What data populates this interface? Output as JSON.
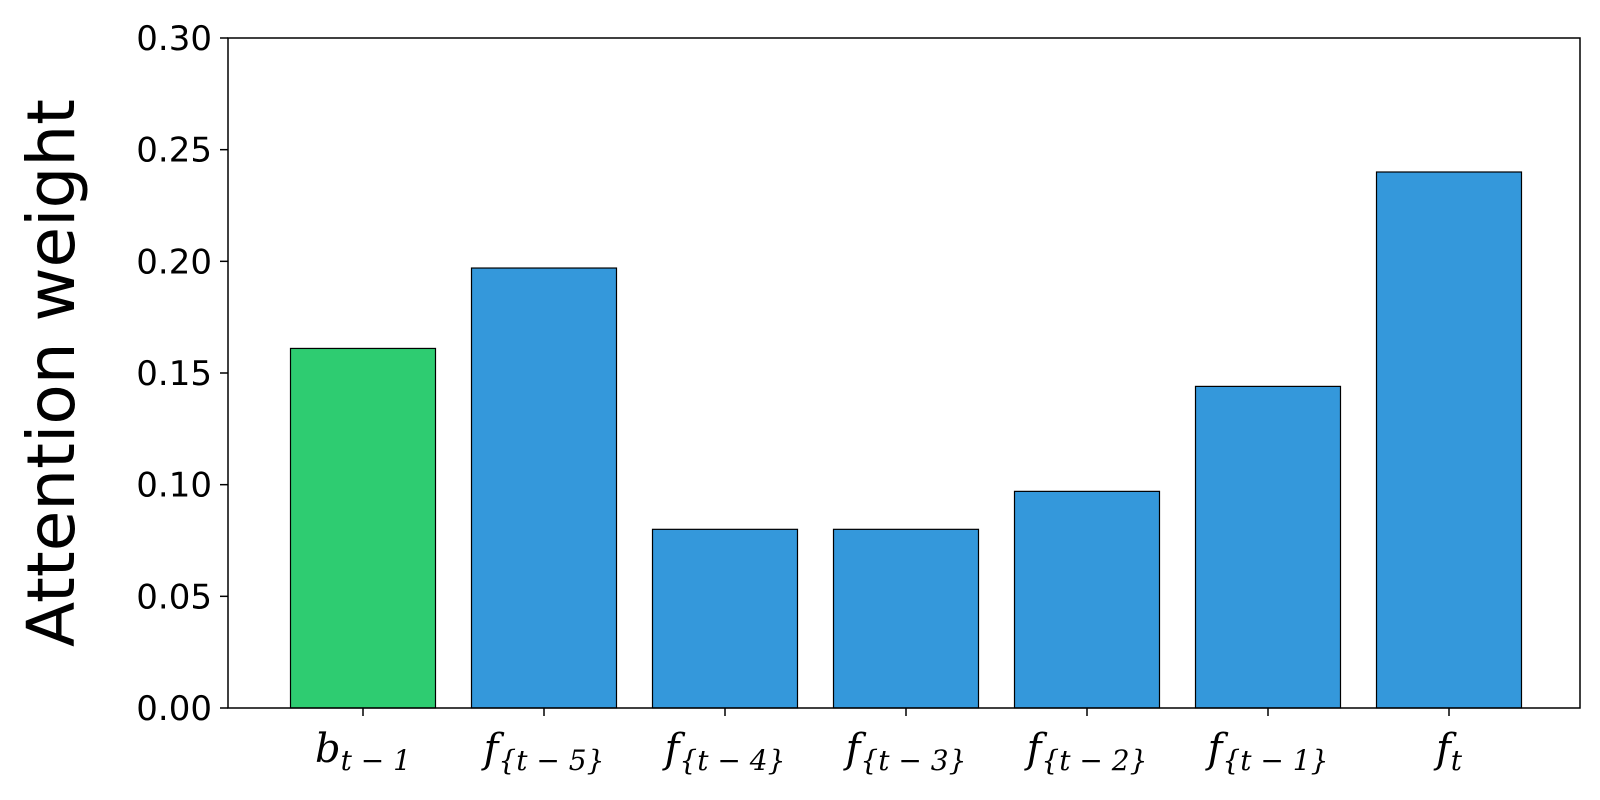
{
  "chart_data": {
    "type": "bar",
    "title": "",
    "xlabel": "",
    "ylabel": "Attention weight",
    "ylim": [
      0,
      0.3
    ],
    "yticks": [
      "0.00",
      "0.05",
      "0.10",
      "0.15",
      "0.20",
      "0.25",
      "0.30"
    ],
    "categories": [
      {
        "base": "b",
        "sub": "t − 1",
        "text": "b_{t-1}"
      },
      {
        "base": "f",
        "sub": "{t − 5}",
        "text": "f_{t-5}"
      },
      {
        "base": "f",
        "sub": "{t − 4}",
        "text": "f_{t-4}"
      },
      {
        "base": "f",
        "sub": "{t − 3}",
        "text": "f_{t-3}"
      },
      {
        "base": "f",
        "sub": "{t − 2}",
        "text": "f_{t-2}"
      },
      {
        "base": "f",
        "sub": "{t − 1}",
        "text": "f_{t-1}"
      },
      {
        "base": "f",
        "sub": "t",
        "text": "f_t"
      }
    ],
    "values": [
      0.161,
      0.197,
      0.08,
      0.08,
      0.097,
      0.144,
      0.24
    ],
    "bar_colors": [
      "#2ecc71",
      "#3498db",
      "#3498db",
      "#3498db",
      "#3498db",
      "#3498db",
      "#3498db"
    ],
    "edge_color": "#000000",
    "grid": false,
    "legend": false
  }
}
